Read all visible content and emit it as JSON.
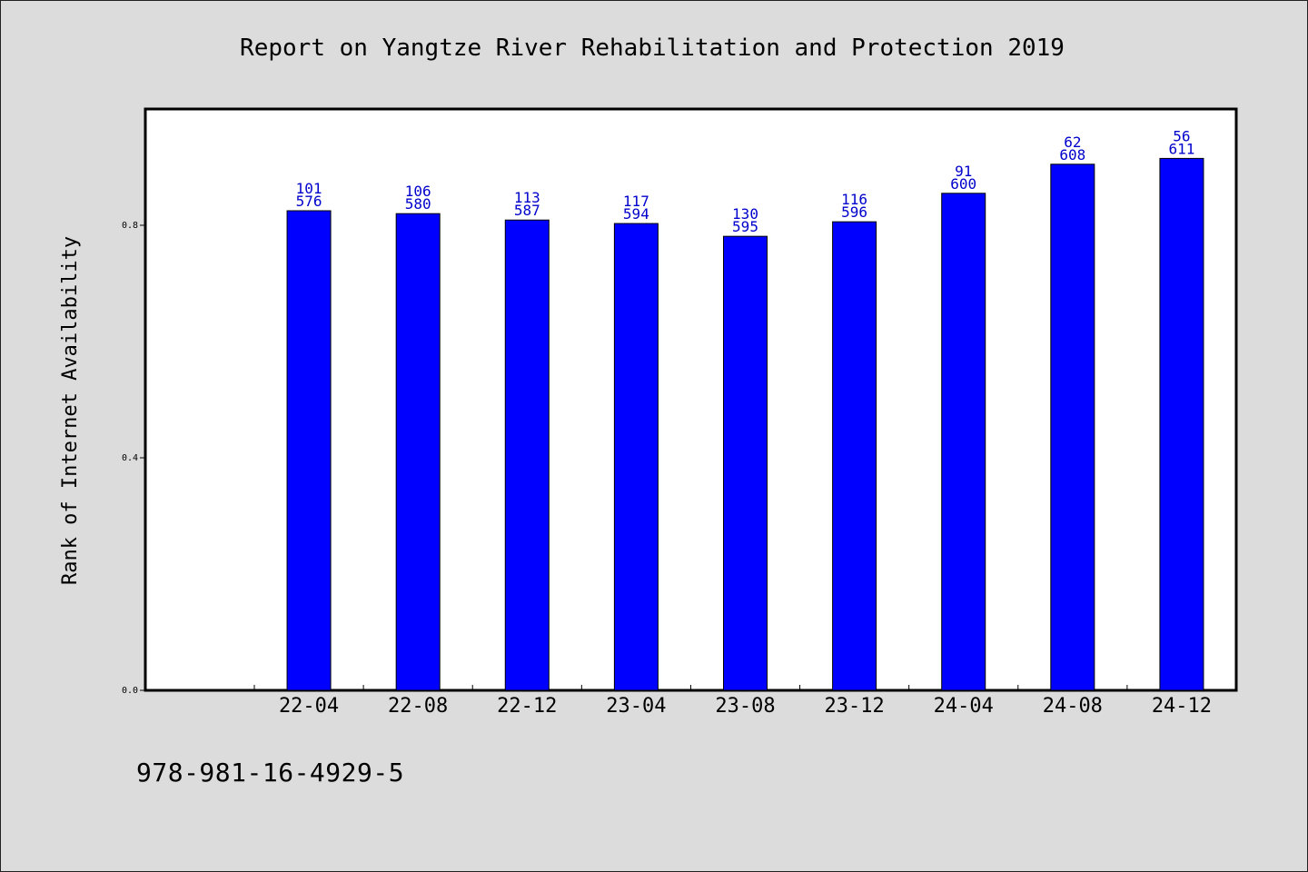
{
  "chart_data": {
    "type": "bar",
    "title": "Report on Yangtze River Rehabilitation and Protection 2019",
    "xlabel": "",
    "ylabel": "Rank of Internet Availability",
    "categories": [
      "22-04",
      "22-08",
      "22-12",
      "23-04",
      "23-08",
      "23-12",
      "24-04",
      "24-08",
      "24-12"
    ],
    "series": [
      {
        "values": [
          0.825,
          0.82,
          0.809,
          0.803,
          0.781,
          0.806,
          0.855,
          0.905,
          0.915
        ],
        "color": "#0000ff",
        "labels_top": [
          "101",
          "106",
          "113",
          "117",
          "130",
          "116",
          "91",
          "62",
          "56"
        ],
        "labels_bottom": [
          "576",
          "580",
          "587",
          "594",
          "595",
          "596",
          "600",
          "608",
          "611"
        ]
      }
    ],
    "ylim": [
      0.0,
      1.0
    ],
    "yticks": [
      0.0,
      0.4,
      0.8
    ],
    "ytick_labels": [
      "0.0",
      "0.4",
      "0.8"
    ],
    "grid": false,
    "legend": "none"
  },
  "footer": {
    "isbn": "978-981-16-4929-5"
  },
  "colors": {
    "background": "#dcdcdc",
    "plot_area": "#ffffff",
    "bar": "#0000ff",
    "data_label": "#0000cc"
  }
}
